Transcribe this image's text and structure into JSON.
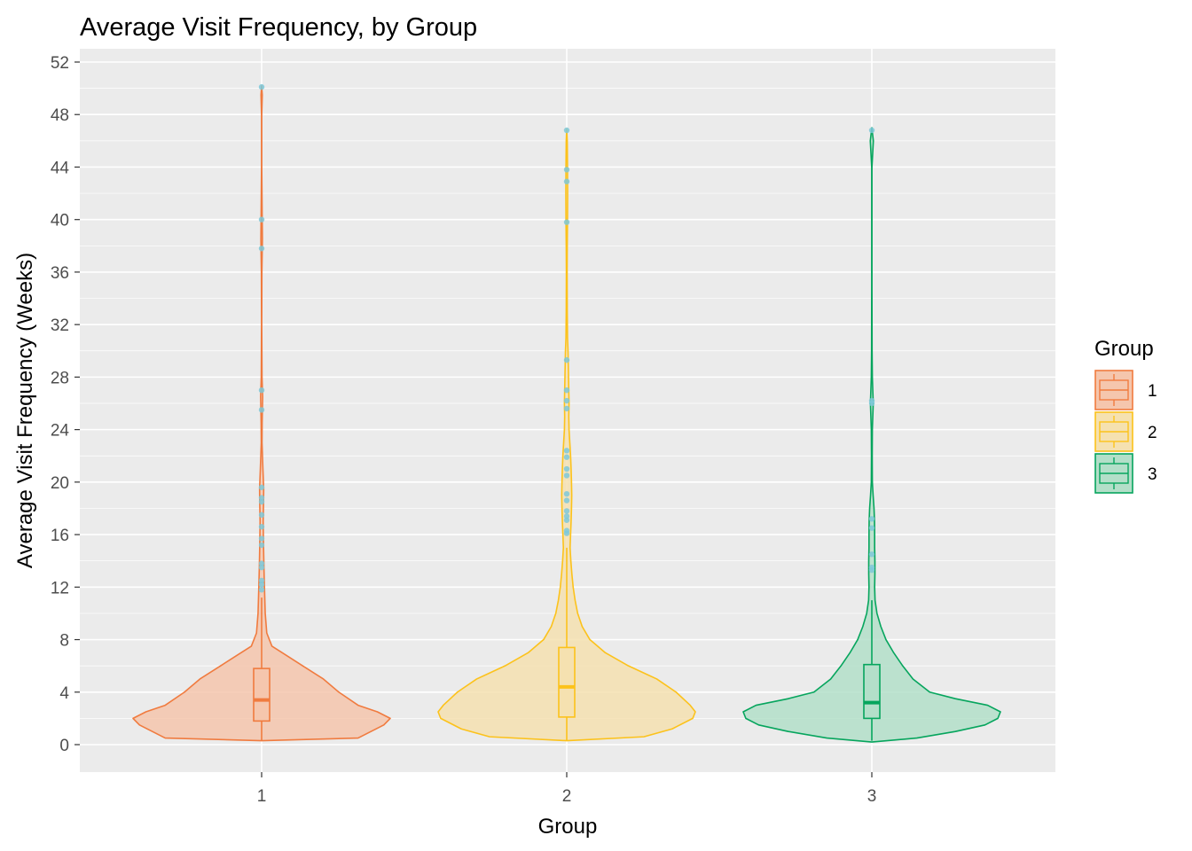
{
  "chart_data": {
    "type": "violin",
    "title": "Average Visit Frequency, by Group",
    "xlabel": "Group",
    "ylabel": "Average Visit Frequency (Weeks)",
    "categories": [
      "1",
      "2",
      "3"
    ],
    "ylim": [
      -2,
      53
    ],
    "y_ticks": [
      0,
      4,
      8,
      12,
      16,
      20,
      24,
      28,
      32,
      36,
      40,
      44,
      48,
      52
    ],
    "panel_background": "#ebebeb",
    "grid": true,
    "legend": {
      "title": "Group",
      "position": "right",
      "entries": [
        "1",
        "2",
        "3"
      ]
    },
    "series": [
      {
        "group": "1",
        "color": "#f07b3f",
        "fill": "#f5c6ad",
        "box": {
          "q1": 1.8,
          "median": 3.4,
          "q3": 5.8
        },
        "whisker": [
          0.3,
          11.2
        ],
        "y_range": [
          0.3,
          50.2
        ],
        "outliers": [
          50.1,
          40.0,
          37.8,
          27.0,
          25.5,
          19.6,
          18.8,
          18.5,
          17.5,
          16.6,
          15.7,
          15.2,
          13.8,
          13.5,
          12.5,
          12.2,
          11.8
        ],
        "density": [
          [
            0.3,
            0.0
          ],
          [
            0.5,
            0.75
          ],
          [
            1.0,
            0.85
          ],
          [
            1.5,
            0.95
          ],
          [
            2.0,
            1.0
          ],
          [
            2.5,
            0.9
          ],
          [
            3.0,
            0.75
          ],
          [
            4.0,
            0.6
          ],
          [
            5.0,
            0.48
          ],
          [
            6.0,
            0.32
          ],
          [
            7.0,
            0.16
          ],
          [
            7.5,
            0.08
          ],
          [
            8.5,
            0.04
          ],
          [
            10.0,
            0.028
          ],
          [
            12.0,
            0.022
          ],
          [
            13.5,
            0.018
          ],
          [
            15.0,
            0.015
          ],
          [
            17.0,
            0.012
          ],
          [
            18.5,
            0.015
          ],
          [
            19.5,
            0.016
          ],
          [
            21.0,
            0.01
          ],
          [
            23.0,
            0.003
          ],
          [
            24.5,
            0.004
          ],
          [
            26.5,
            0.008
          ],
          [
            28.0,
            0.003
          ],
          [
            32.0,
            0.001
          ],
          [
            36.0,
            0.002
          ],
          [
            38.5,
            0.006
          ],
          [
            40.5,
            0.004
          ],
          [
            44.0,
            0.001
          ],
          [
            48.0,
            0.001
          ],
          [
            49.5,
            0.005
          ],
          [
            50.2,
            0.0
          ]
        ]
      },
      {
        "group": "2",
        "color": "#fcc21b",
        "fill": "#f5e1b0",
        "box": {
          "q1": 2.1,
          "median": 4.4,
          "q3": 7.4
        },
        "whisker": [
          0.3,
          15.0
        ],
        "y_range": [
          0.3,
          46.9
        ],
        "outliers": [
          46.8,
          43.8,
          42.9,
          39.8,
          29.3,
          27.0,
          26.2,
          25.6,
          22.4,
          21.9,
          21.0,
          20.5,
          19.1,
          18.6,
          17.8,
          17.4,
          17.1,
          16.3,
          16.1
        ],
        "density": [
          [
            0.3,
            0.0
          ],
          [
            0.6,
            0.6
          ],
          [
            1.2,
            0.82
          ],
          [
            2.0,
            0.98
          ],
          [
            2.5,
            1.0
          ],
          [
            3.0,
            0.96
          ],
          [
            4.0,
            0.85
          ],
          [
            5.0,
            0.7
          ],
          [
            6.0,
            0.48
          ],
          [
            7.0,
            0.3
          ],
          [
            8.0,
            0.18
          ],
          [
            9.0,
            0.12
          ],
          [
            10.0,
            0.085
          ],
          [
            11.0,
            0.065
          ],
          [
            12.0,
            0.05
          ],
          [
            13.0,
            0.04
          ],
          [
            14.0,
            0.032
          ],
          [
            15.0,
            0.026
          ],
          [
            16.0,
            0.03
          ],
          [
            17.0,
            0.034
          ],
          [
            18.0,
            0.037
          ],
          [
            19.0,
            0.039
          ],
          [
            20.0,
            0.037
          ],
          [
            21.0,
            0.034
          ],
          [
            22.0,
            0.03
          ],
          [
            23.0,
            0.024
          ],
          [
            24.0,
            0.018
          ],
          [
            25.0,
            0.016
          ],
          [
            26.0,
            0.018
          ],
          [
            27.0,
            0.016
          ],
          [
            28.0,
            0.014
          ],
          [
            29.0,
            0.012
          ],
          [
            30.0,
            0.01
          ],
          [
            31.0,
            0.006
          ],
          [
            33.0,
            0.004
          ],
          [
            36.0,
            0.003
          ],
          [
            38.0,
            0.004
          ],
          [
            40.0,
            0.006
          ],
          [
            42.0,
            0.007
          ],
          [
            44.0,
            0.006
          ],
          [
            46.0,
            0.004
          ],
          [
            46.9,
            0.0
          ]
        ]
      },
      {
        "group": "3",
        "color": "#06a55d",
        "fill": "#b3dfc9",
        "box": {
          "q1": 2.0,
          "median": 3.2,
          "q3": 6.1
        },
        "whisker": [
          0.3,
          11.0
        ],
        "y_range": [
          0.2,
          47.0
        ],
        "outliers": [
          46.8,
          26.2,
          26.0,
          17.2,
          16.5,
          14.5,
          13.5,
          13.3
        ],
        "density": [
          [
            0.2,
            0.0
          ],
          [
            0.5,
            0.35
          ],
          [
            1.0,
            0.65
          ],
          [
            1.5,
            0.88
          ],
          [
            2.0,
            0.98
          ],
          [
            2.5,
            1.0
          ],
          [
            3.0,
            0.9
          ],
          [
            3.5,
            0.65
          ],
          [
            4.0,
            0.45
          ],
          [
            5.0,
            0.32
          ],
          [
            6.0,
            0.24
          ],
          [
            7.0,
            0.17
          ],
          [
            8.0,
            0.11
          ],
          [
            9.0,
            0.07
          ],
          [
            10.0,
            0.04
          ],
          [
            11.0,
            0.025
          ],
          [
            12.0,
            0.022
          ],
          [
            13.0,
            0.024
          ],
          [
            14.0,
            0.024
          ],
          [
            15.0,
            0.022
          ],
          [
            16.0,
            0.022
          ],
          [
            17.0,
            0.021
          ],
          [
            18.0,
            0.017
          ],
          [
            19.0,
            0.01
          ],
          [
            20.0,
            0.004
          ],
          [
            22.0,
            0.003
          ],
          [
            24.0,
            0.004
          ],
          [
            26.0,
            0.011
          ],
          [
            28.0,
            0.004
          ],
          [
            30.0,
            0.002
          ],
          [
            35.0,
            0.001
          ],
          [
            40.0,
            0.001
          ],
          [
            44.0,
            0.001
          ],
          [
            46.0,
            0.012
          ],
          [
            47.0,
            0.0
          ]
        ]
      }
    ],
    "outlier_color": "#7ec8d8"
  }
}
